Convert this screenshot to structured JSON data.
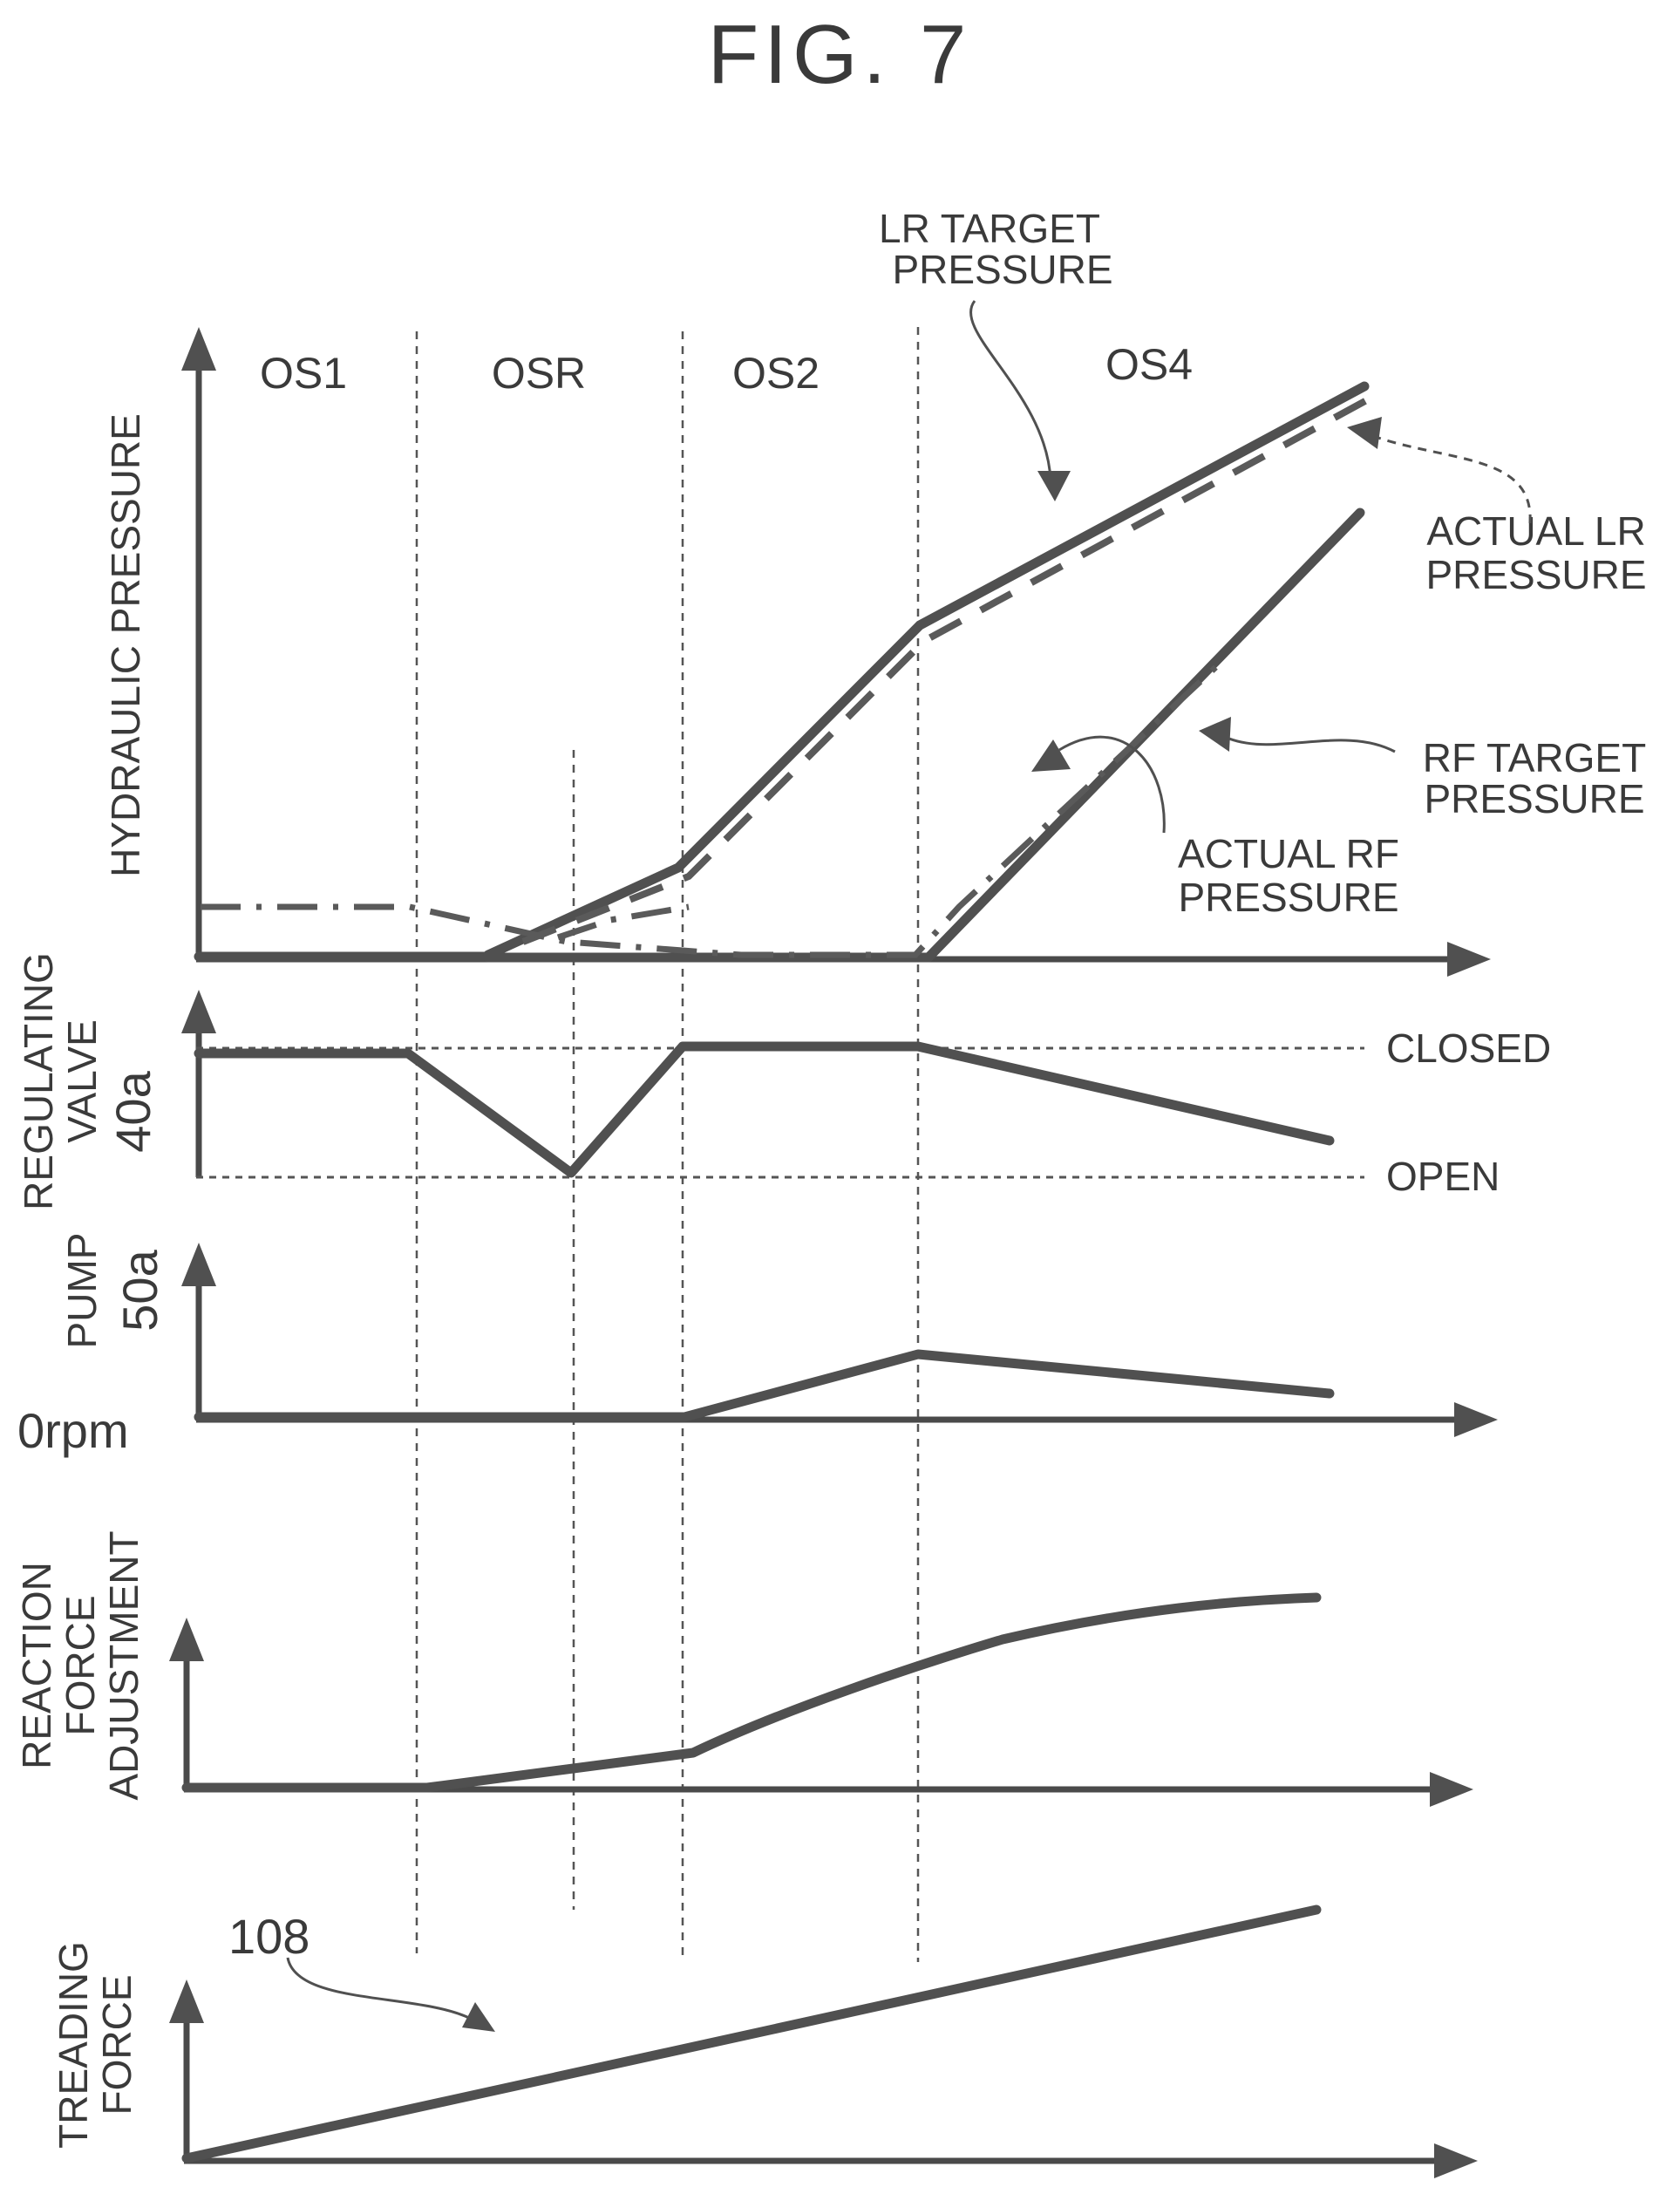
{
  "figure": {
    "title": "FIG. 7",
    "phases": [
      "OS1",
      "OSR",
      "OS2",
      "OS4"
    ],
    "hydraulic_panel": {
      "ylabel": "HYDRAULIC PRESSURE",
      "annotations": {
        "lr_target": [
          "LR TARGET",
          "PRESSURE"
        ],
        "actual_lr": [
          "ACTUAL LR",
          "PRESSURE"
        ],
        "rf_target": [
          "RF TARGET",
          "PRESSURE"
        ],
        "actual_rf": [
          "ACTUAL RF",
          "PRESSURE"
        ]
      }
    },
    "valve_panel": {
      "ylabel": [
        "REGULATING",
        "VALVE"
      ],
      "ref": "40a",
      "closed_label": "CLOSED",
      "open_label": "OPEN"
    },
    "pump_panel": {
      "ylabel": "PUMP",
      "ref": "50a",
      "zero_label": "0rpm"
    },
    "reaction_panel": {
      "ylabel": [
        "REACTION",
        "FORCE",
        "ADJUSTMENT"
      ]
    },
    "treading_panel": {
      "ylabel": [
        "TREADING",
        "FORCE"
      ],
      "ref": "108"
    }
  },
  "colors": {
    "ink": "#4a4a4a",
    "background": "#ffffff"
  }
}
